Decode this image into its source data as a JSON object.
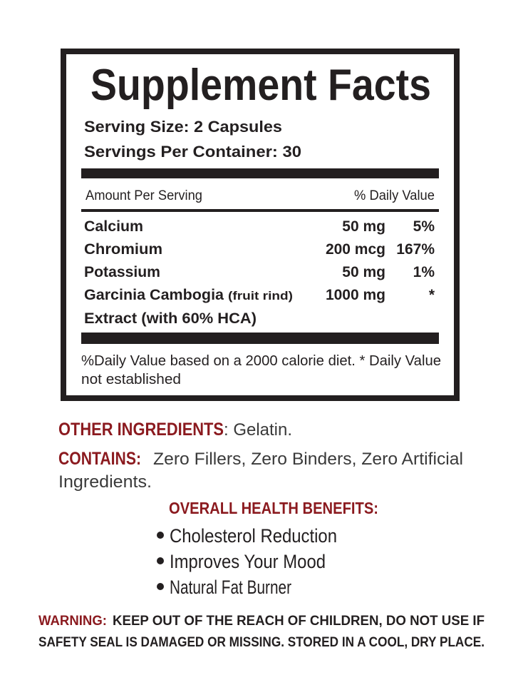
{
  "facts": {
    "title": "Supplement Facts",
    "serving_size": "Serving Size: 2 Capsules",
    "servings_per_container": "Servings Per Container: 30",
    "amount_header": "Amount Per Serving",
    "dv_header": "% Daily Value",
    "rows": [
      {
        "name": "Calcium",
        "amount": "50 mg",
        "dv": "5%"
      },
      {
        "name": "Chromium",
        "amount": "200 mcg",
        "dv": "167%"
      },
      {
        "name": "Potassium",
        "amount": "50 mg",
        "dv": "1%"
      },
      {
        "name": "Garcinia Cambogia",
        "note": "(fruit rind)",
        "name_line2": "Extract (with 60% HCA)",
        "amount": "1000 mg",
        "dv": "*"
      }
    ],
    "footnote": [
      "%Daily Value based on a 2000 calorie diet. * Daily Value",
      "not established"
    ]
  },
  "other_ingredients": {
    "label": "OTHER INGREDIENTS",
    "text": ": Gelatin."
  },
  "contains": {
    "label": "CONTAINS:",
    "lines": [
      "Zero Fillers, Zero Binders, Zero Artificial",
      "Ingredients."
    ]
  },
  "benefits": {
    "title": "OVERALL HEALTH BENEFITS:",
    "items": [
      "Cholesterol Reduction",
      "Improves Your Mood",
      "Natural Fat Burner"
    ]
  },
  "warning": {
    "label": "WARNING:",
    "lines": [
      "KEEP OUT OF THE REACH OF CHILDREN, DO NOT USE IF",
      "SAFETY SEAL IS DAMAGED OR MISSING. STORED IN A COOL, DRY PLACE."
    ]
  }
}
